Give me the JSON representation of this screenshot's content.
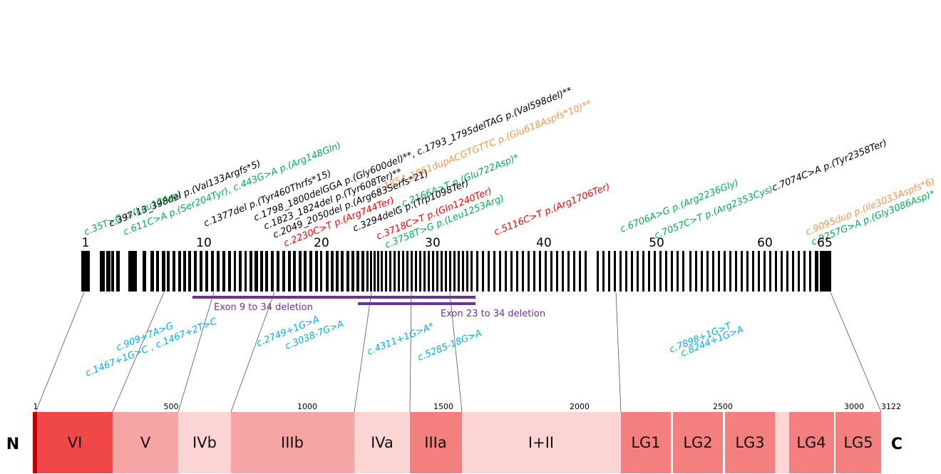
{
  "exon_numbers": [
    "1",
    "10",
    "20",
    "30",
    "40",
    "50",
    "60",
    "65"
  ],
  "mutations_top": [
    {
      "text": "c.35T>G p.(Leu12Arg)",
      "color": "#00b050"
    },
    {
      "text": "c.397-13_398del p.(Val133Argfs*5)",
      "color": "#000000"
    },
    {
      "text": "c.611C>A p.(Ser204Tyr), c.443G>A p.(Arg148Gln)",
      "color": "#00b050"
    },
    {
      "text": "c.1377del p.(Tyr460Thrfs*15)",
      "color": "#000000"
    },
    {
      "text": "c.1798_1800delGGA p.(Gly600del)**, c.1793_1795delTAG p.(Val598del)**",
      "color": "#000000"
    },
    {
      "text": "c.1823_1824del p.(Tyr608Ter)**",
      "color": "#000000"
    },
    {
      "text": "c.1854_1861dupACGTGTTC p.(Glu618Aspfs*10)**",
      "color": "#f79646"
    },
    {
      "text": "c.2049_2050del p.(Arg683Serfs*21)",
      "color": "#000000"
    },
    {
      "text": "c.2230C>T p.(Arg744Ter)",
      "color": "#ff0000"
    },
    {
      "text": ", c.2166A>T p.(Glu722Asp)*",
      "color": "#00b050"
    },
    {
      "text": "c.3294delG p.(Trp1098Ter)",
      "color": "#000000"
    },
    {
      "text": "c.3718C>T p.(Gln1240Ter)",
      "color": "#ff0000"
    },
    {
      "text": "c.3758T>G p.(Leu1253Arg)",
      "color": "#00b050"
    },
    {
      "text": "c.5116C>T p.(Arg1706Ter)",
      "color": "#ff0000"
    },
    {
      "text": "c.6706A>G p.(Arg2236Gly)",
      "color": "#00b050"
    },
    {
      "text": "c.7057C>T p.(Arg2353Cys)",
      "color": "#00b050"
    },
    {
      "text": "c.7074C>A p.(Tyr2358Ter)",
      "color": "#000000"
    },
    {
      "text": "c.9095dup p.(Ile3033Aspfs*6)",
      "color": "#f79646"
    },
    {
      "text": "c.9257G>A p.(Gly3086Asp)*",
      "color": "#00b050"
    }
  ],
  "deletions": [
    {
      "label": "Exon 9 to 34 deletion",
      "color": "#7030a0"
    },
    {
      "label": "Exon 23 to 34 deletion",
      "color": "#7030a0"
    }
  ],
  "splice_variants": [
    {
      "text": "c.909+7A>G",
      "color": "#00b0f0"
    },
    {
      "text": "c.1467+1G>C , c.1467+2T>C",
      "color": "#00b0f0"
    },
    {
      "text": "c.2749+1G>A",
      "color": "#00b0f0"
    },
    {
      "text": "c.3038-7G>A",
      "color": "#00b0f0"
    },
    {
      "text": "c.4311+1G>A*",
      "color": "#00b0f0"
    },
    {
      "text": "c.5285-18G>A",
      "color": "#00b0f0"
    },
    {
      "text": "c.7898+1G>T",
      "color": "#00b0f0"
    },
    {
      "text": "c.8244+1G>A",
      "color": "#00b0f0"
    }
  ],
  "ruler_labels": [
    "1",
    "500",
    "1000",
    "1500",
    "2000",
    "2500",
    "3000",
    "3122"
  ],
  "domains": [
    {
      "label": "VI",
      "color": "#f04848"
    },
    {
      "label": "V",
      "color": "#f7a4a4"
    },
    {
      "label": "IVb",
      "color": "#fcd4d4"
    },
    {
      "label": "IIIb",
      "color": "#f7a4a4"
    },
    {
      "label": "IVa",
      "color": "#fcd4d4"
    },
    {
      "label": "IIIa",
      "color": "#f47f7f"
    },
    {
      "label": "I+II",
      "color": "#fcd4d4"
    },
    {
      "label": "LG1",
      "color": "#f47f7f"
    },
    {
      "label": "LG2",
      "color": "#f47f7f"
    },
    {
      "label": "LG3",
      "color": "#f47f7f"
    },
    {
      "label": "LG4",
      "color": "#f47f7f"
    },
    {
      "label": "LG5",
      "color": "#f47f7f"
    }
  ],
  "terminus": {
    "n": "N",
    "c": "C"
  }
}
